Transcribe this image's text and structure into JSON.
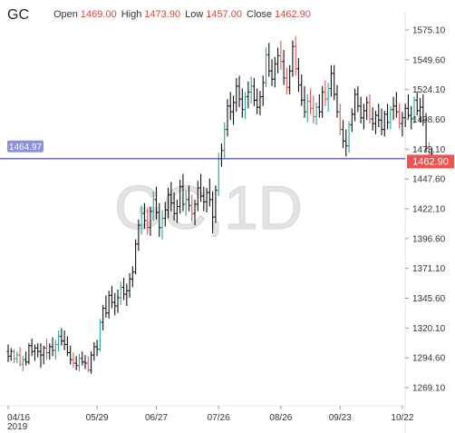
{
  "header": {
    "symbol": "GC",
    "open_label": "Open",
    "open_value": "1469.00",
    "high_label": "High",
    "high_value": "1473.90",
    "low_label": "Low",
    "low_value": "1457.00",
    "close_label": "Close",
    "close_value": "1462.90"
  },
  "watermark": "GC,1D",
  "colors": {
    "up": "#26a69a",
    "down": "#ef5350",
    "neutral": "#111111",
    "level_line": "#3b3f9b",
    "level_badge": "#8b8fe0",
    "price_badge": "#ef5350"
  },
  "chart_data": {
    "type": "ohlc",
    "interval": "1D",
    "y_axis": {
      "ticks": [
        "1575.10",
        "1549.60",
        "1524.10",
        "1498.60",
        "1473.10",
        "1447.60",
        "1422.10",
        "1396.60",
        "1371.10",
        "1345.60",
        "1320.10",
        "1294.60",
        "1269.10"
      ],
      "range": [
        1258,
        1581
      ]
    },
    "x_axis": {
      "ticks": [
        {
          "label": "04/16",
          "sub": "2019",
          "index": 0
        },
        {
          "label": "05/29",
          "index": 30
        },
        {
          "label": "06/27",
          "index": 50
        },
        {
          "label": "07/26",
          "index": 71
        },
        {
          "label": "08/26",
          "index": 92
        },
        {
          "label": "09/23",
          "index": 112
        },
        {
          "label": "10/22",
          "index": 133
        }
      ]
    },
    "horizontal_line": {
      "label": "1464.97",
      "value": 1464.97
    },
    "last_price": {
      "label": "1462.90",
      "value": 1462.9
    },
    "bars": [
      [
        1300,
        1306,
        1291,
        1296
      ],
      [
        1296,
        1303,
        1292,
        1300
      ],
      [
        1300,
        1302,
        1290,
        1294
      ],
      [
        1294,
        1300,
        1290,
        1297
      ],
      [
        1297,
        1304,
        1287,
        1289
      ],
      [
        1289,
        1296,
        1283,
        1293
      ],
      [
        1293,
        1300,
        1288,
        1291
      ],
      [
        1291,
        1307,
        1289,
        1305
      ],
      [
        1305,
        1311,
        1296,
        1300
      ],
      [
        1300,
        1306,
        1292,
        1303
      ],
      [
        1303,
        1307,
        1295,
        1300
      ],
      [
        1300,
        1307,
        1286,
        1297
      ],
      [
        1297,
        1305,
        1289,
        1303
      ],
      [
        1303,
        1311,
        1293,
        1299
      ],
      [
        1299,
        1307,
        1293,
        1304
      ],
      [
        1304,
        1312,
        1296,
        1301
      ],
      [
        1301,
        1310,
        1293,
        1306
      ],
      [
        1306,
        1318,
        1300,
        1313
      ],
      [
        1313,
        1320,
        1305,
        1309
      ],
      [
        1309,
        1318,
        1301,
        1306
      ],
      [
        1306,
        1313,
        1296,
        1299
      ],
      [
        1299,
        1305,
        1289,
        1293
      ],
      [
        1293,
        1299,
        1286,
        1290
      ],
      [
        1290,
        1296,
        1284,
        1288
      ],
      [
        1288,
        1298,
        1283,
        1294
      ],
      [
        1294,
        1300,
        1288,
        1291
      ],
      [
        1291,
        1297,
        1285,
        1290
      ],
      [
        1290,
        1296,
        1282,
        1284
      ],
      [
        1284,
        1300,
        1281,
        1297
      ],
      [
        1297,
        1308,
        1292,
        1304
      ],
      [
        1304,
        1310,
        1296,
        1302
      ],
      [
        1302,
        1328,
        1300,
        1325
      ],
      [
        1325,
        1340,
        1318,
        1337
      ],
      [
        1337,
        1348,
        1329,
        1333
      ],
      [
        1333,
        1352,
        1328,
        1348
      ],
      [
        1348,
        1356,
        1337,
        1342
      ],
      [
        1342,
        1350,
        1331,
        1339
      ],
      [
        1339,
        1353,
        1333,
        1346
      ],
      [
        1346,
        1360,
        1340,
        1355
      ],
      [
        1355,
        1363,
        1344,
        1349
      ],
      [
        1349,
        1358,
        1339,
        1352
      ],
      [
        1352,
        1367,
        1346,
        1362
      ],
      [
        1362,
        1373,
        1355,
        1368
      ],
      [
        1368,
        1396,
        1366,
        1392
      ],
      [
        1392,
        1413,
        1386,
        1408
      ],
      [
        1408,
        1425,
        1400,
        1418
      ],
      [
        1418,
        1427,
        1405,
        1412
      ],
      [
        1412,
        1422,
        1400,
        1406
      ],
      [
        1406,
        1424,
        1399,
        1420
      ],
      [
        1420,
        1437,
        1412,
        1430
      ],
      [
        1430,
        1441,
        1413,
        1419
      ],
      [
        1419,
        1427,
        1398,
        1406
      ],
      [
        1406,
        1421,
        1396,
        1414
      ],
      [
        1414,
        1428,
        1407,
        1421
      ],
      [
        1421,
        1440,
        1414,
        1434
      ],
      [
        1434,
        1445,
        1420,
        1427
      ],
      [
        1427,
        1436,
        1412,
        1418
      ],
      [
        1418,
        1430,
        1410,
        1424
      ],
      [
        1424,
        1447,
        1418,
        1441
      ],
      [
        1441,
        1452,
        1420,
        1426
      ],
      [
        1426,
        1438,
        1416,
        1430
      ],
      [
        1430,
        1442,
        1420,
        1425
      ],
      [
        1425,
        1434,
        1411,
        1418
      ],
      [
        1418,
        1430,
        1408,
        1426
      ],
      [
        1426,
        1446,
        1420,
        1440
      ],
      [
        1440,
        1452,
        1428,
        1433
      ],
      [
        1433,
        1441,
        1420,
        1428
      ],
      [
        1428,
        1440,
        1419,
        1436
      ],
      [
        1436,
        1448,
        1424,
        1430
      ],
      [
        1430,
        1437,
        1401,
        1415
      ],
      [
        1415,
        1442,
        1410,
        1438
      ],
      [
        1438,
        1470,
        1433,
        1465
      ],
      [
        1465,
        1478,
        1458,
        1472
      ],
      [
        1472,
        1496,
        1465,
        1490
      ],
      [
        1490,
        1516,
        1484,
        1510
      ],
      [
        1510,
        1522,
        1498,
        1505
      ],
      [
        1505,
        1519,
        1494,
        1513
      ],
      [
        1513,
        1534,
        1505,
        1527
      ],
      [
        1527,
        1536,
        1509,
        1516
      ],
      [
        1516,
        1525,
        1500,
        1507
      ],
      [
        1507,
        1522,
        1499,
        1518
      ],
      [
        1518,
        1531,
        1508,
        1522
      ],
      [
        1522,
        1535,
        1512,
        1527
      ],
      [
        1527,
        1534,
        1510,
        1515
      ],
      [
        1515,
        1525,
        1503,
        1509
      ],
      [
        1509,
        1523,
        1502,
        1518
      ],
      [
        1518,
        1536,
        1510,
        1530
      ],
      [
        1530,
        1560,
        1526,
        1554
      ],
      [
        1554,
        1564,
        1535,
        1540
      ],
      [
        1540,
        1550,
        1527,
        1533
      ],
      [
        1533,
        1552,
        1526,
        1546
      ],
      [
        1546,
        1560,
        1538,
        1553
      ],
      [
        1553,
        1566,
        1541,
        1548
      ],
      [
        1548,
        1558,
        1528,
        1534
      ],
      [
        1534,
        1543,
        1520,
        1526
      ],
      [
        1526,
        1545,
        1520,
        1540
      ],
      [
        1540,
        1566,
        1535,
        1561
      ],
      [
        1561,
        1570,
        1536,
        1542
      ],
      [
        1542,
        1551,
        1522,
        1528
      ],
      [
        1528,
        1537,
        1510,
        1515
      ],
      [
        1515,
        1527,
        1500,
        1505
      ],
      [
        1505,
        1520,
        1496,
        1514
      ],
      [
        1514,
        1525,
        1503,
        1508
      ],
      [
        1508,
        1519,
        1495,
        1501
      ],
      [
        1501,
        1513,
        1494,
        1509
      ],
      [
        1509,
        1520,
        1500,
        1505
      ],
      [
        1505,
        1527,
        1500,
        1522
      ],
      [
        1522,
        1532,
        1510,
        1516
      ],
      [
        1516,
        1530,
        1505,
        1525
      ],
      [
        1525,
        1545,
        1518,
        1538
      ],
      [
        1538,
        1545,
        1515,
        1520
      ],
      [
        1520,
        1528,
        1500,
        1505
      ],
      [
        1505,
        1512,
        1485,
        1490
      ],
      [
        1490,
        1498,
        1474,
        1480
      ],
      [
        1480,
        1490,
        1467,
        1476
      ],
      [
        1476,
        1497,
        1470,
        1494
      ],
      [
        1494,
        1508,
        1488,
        1503
      ],
      [
        1503,
        1525,
        1497,
        1520
      ],
      [
        1520,
        1527,
        1505,
        1510
      ],
      [
        1510,
        1518,
        1495,
        1500
      ],
      [
        1500,
        1512,
        1490,
        1506
      ],
      [
        1506,
        1518,
        1498,
        1513
      ],
      [
        1513,
        1520,
        1495,
        1499
      ],
      [
        1499,
        1509,
        1489,
        1495
      ],
      [
        1495,
        1506,
        1486,
        1502
      ],
      [
        1502,
        1512,
        1492,
        1498
      ],
      [
        1498,
        1508,
        1485,
        1490
      ],
      [
        1490,
        1506,
        1484,
        1503
      ],
      [
        1503,
        1512,
        1490,
        1496
      ],
      [
        1496,
        1510,
        1490,
        1507
      ],
      [
        1507,
        1518,
        1498,
        1510
      ],
      [
        1510,
        1522,
        1500,
        1505
      ],
      [
        1505,
        1512,
        1491,
        1495
      ],
      [
        1495,
        1505,
        1484,
        1500
      ],
      [
        1500,
        1512,
        1492,
        1508
      ],
      [
        1508,
        1520,
        1498,
        1502
      ],
      [
        1502,
        1510,
        1490,
        1499
      ],
      [
        1499,
        1518,
        1495,
        1515
      ],
      [
        1515,
        1522,
        1502,
        1506
      ],
      [
        1506,
        1517,
        1496,
        1509
      ],
      [
        1509,
        1520,
        1493,
        1498
      ],
      [
        1498,
        1504,
        1470,
        1474
      ],
      [
        1474,
        1479,
        1461,
        1470
      ],
      [
        1469,
        1473.9,
        1457,
        1462.9
      ]
    ]
  }
}
